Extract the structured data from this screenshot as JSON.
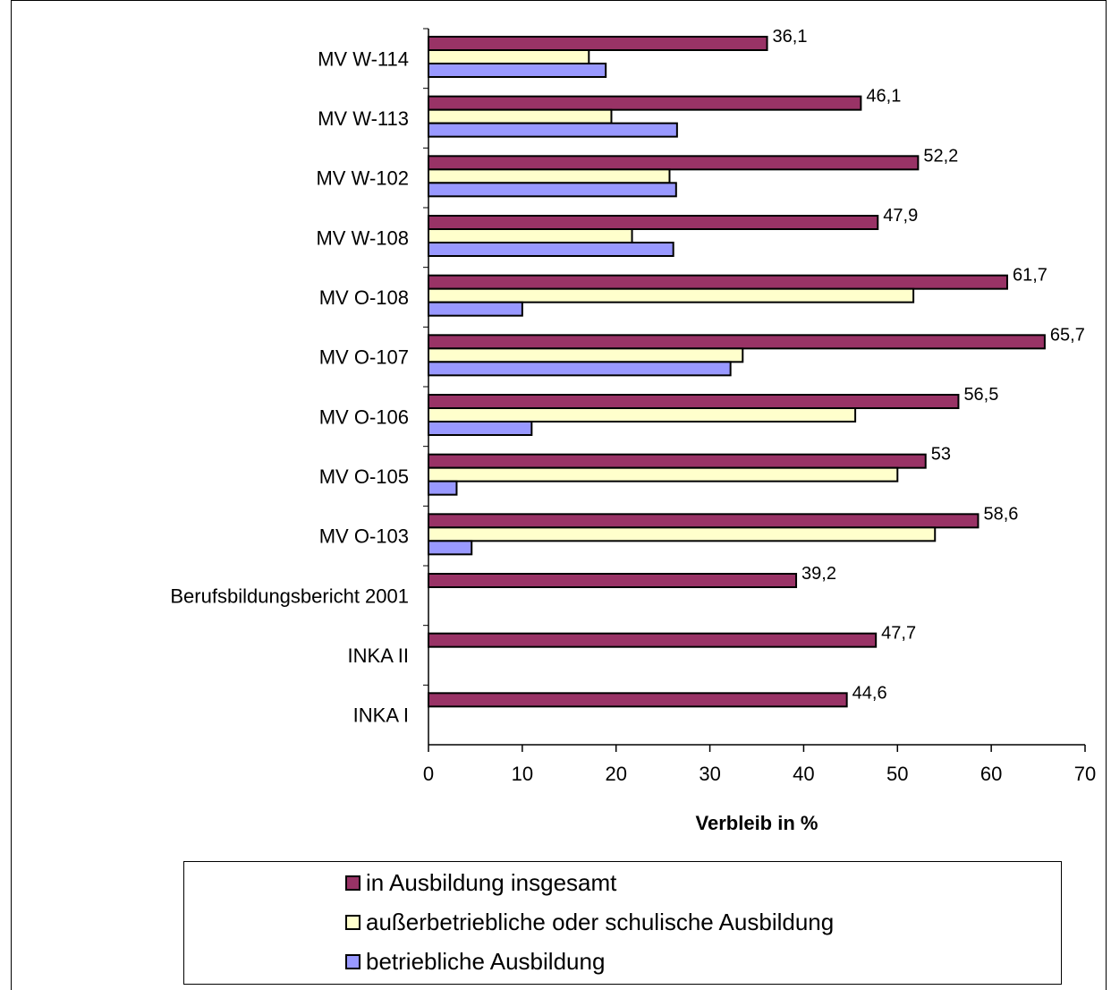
{
  "chart_data": {
    "type": "bar",
    "orientation": "horizontal",
    "categories": [
      "MV W-114",
      "MV W-113",
      "MV W-102",
      "MV W-108",
      "MV O-108",
      "MV O-107",
      "MV O-106",
      "MV O-105",
      "MV O-103",
      "Berufsbildungsbericht 2001",
      "INKA II",
      "INKA I"
    ],
    "series": [
      {
        "name": "in Ausbildung insgesamt",
        "color": "#993366",
        "values": [
          36.1,
          46.1,
          52.2,
          47.9,
          61.7,
          65.7,
          56.5,
          53,
          58.6,
          39.2,
          47.7,
          44.6
        ],
        "labels": [
          "36,1",
          "46,1",
          "52,2",
          "47,9",
          "61,7",
          "65,7",
          "56,5",
          "53",
          "58,6",
          "39,2",
          "47,7",
          "44,6"
        ]
      },
      {
        "name": "außerbetriebliche oder schulische Ausbildung",
        "color": "#FFFFCC",
        "values": [
          17.1,
          19.5,
          25.7,
          21.7,
          51.7,
          33.5,
          45.5,
          50,
          54,
          null,
          null,
          null
        ]
      },
      {
        "name": "betriebliche Ausbildung",
        "color": "#9999FF",
        "values": [
          18.9,
          26.5,
          26.4,
          26.1,
          10,
          32.2,
          11,
          3,
          4.6,
          null,
          null,
          null
        ]
      }
    ],
    "xlabel": "Verbleib in %",
    "ylabel": "",
    "xlim": [
      0,
      70
    ],
    "xticks": [
      0,
      10,
      20,
      30,
      40,
      50,
      60,
      70
    ],
    "grid": false,
    "legend": "bottom"
  }
}
